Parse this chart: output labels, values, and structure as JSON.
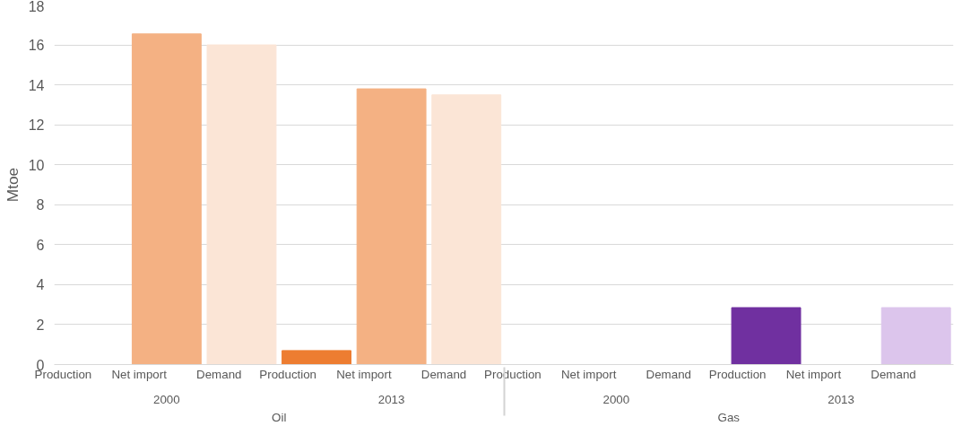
{
  "chart_data": {
    "type": "bar",
    "ylabel": "Mtoe",
    "categories": [
      "Production",
      "Net import",
      "Demand",
      "Production",
      "Net import",
      "Demand",
      "Production",
      "Net import",
      "Demand",
      "Production",
      "Net import",
      "Demand"
    ],
    "annotations": [
      "2000",
      "2013",
      "2000",
      "2013",
      "Oil",
      "Gas"
    ],
    "values": [
      0,
      16.55,
      16.0,
      0.7,
      13.8,
      13.5,
      0,
      0,
      0,
      2.85,
      0,
      2.85
    ],
    "colors": [
      "#ed7d31",
      "#f4b183",
      "#fbe5d6",
      "#ed7d31",
      "#f4b183",
      "#fbe5d6",
      "#7030a0",
      "#c9a6e0",
      "#dcc5ec",
      "#7030a0",
      "#c9a6e0",
      "#dcc5ec"
    ],
    "ylim": [
      0,
      18
    ],
    "yticks": [
      0,
      2,
      4,
      6,
      8,
      10,
      12,
      14,
      16,
      18
    ],
    "grid": "y"
  }
}
